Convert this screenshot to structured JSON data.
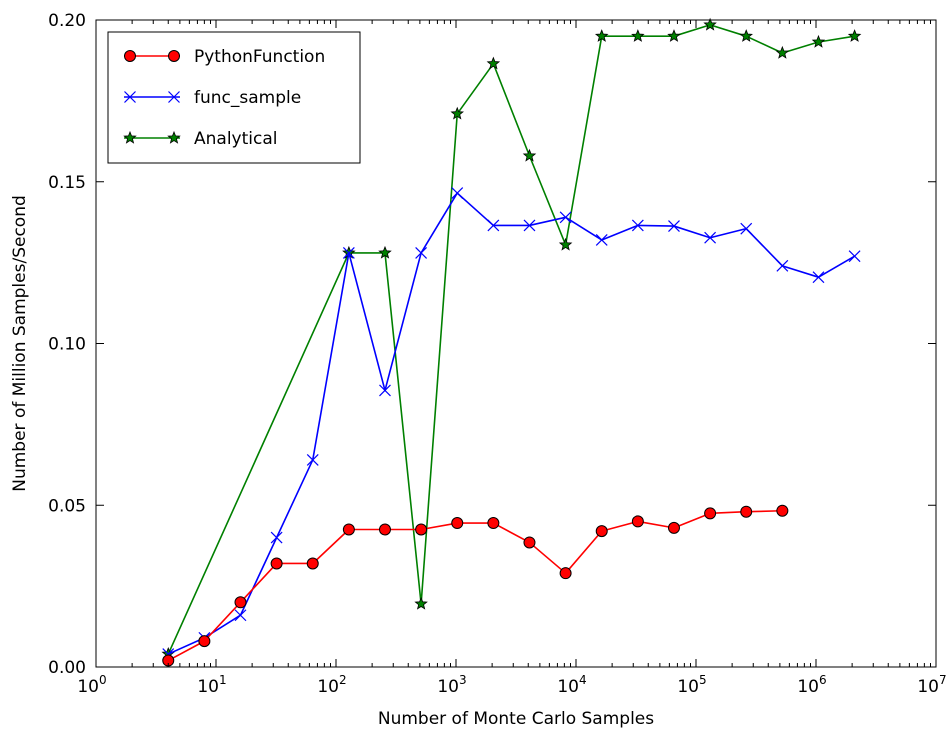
{
  "chart_data": {
    "type": "line",
    "title": "",
    "xlabel": "Number of Monte Carlo Samples",
    "ylabel": "Number of Million Samples/Second",
    "xscale": "log",
    "xlim": [
      1,
      10000000
    ],
    "ylim": [
      0.0,
      0.2
    ],
    "grid": false,
    "legend_position": "top-left",
    "x_ticks": [
      {
        "base": "10",
        "exp": "0",
        "value": 1
      },
      {
        "base": "10",
        "exp": "1",
        "value": 10
      },
      {
        "base": "10",
        "exp": "2",
        "value": 100
      },
      {
        "base": "10",
        "exp": "3",
        "value": 1000
      },
      {
        "base": "10",
        "exp": "4",
        "value": 10000
      },
      {
        "base": "10",
        "exp": "5",
        "value": 100000
      },
      {
        "base": "10",
        "exp": "6",
        "value": 1000000
      },
      {
        "base": "10",
        "exp": "7",
        "value": 10000000
      }
    ],
    "y_ticks": [
      {
        "label": "0.00",
        "value": 0.0
      },
      {
        "label": "0.05",
        "value": 0.05
      },
      {
        "label": "0.10",
        "value": 0.1
      },
      {
        "label": "0.15",
        "value": 0.15
      },
      {
        "label": "0.20",
        "value": 0.2
      }
    ],
    "series": [
      {
        "name": "PythonFunction",
        "color": "#ff0000",
        "line_color": "#ff0000",
        "marker": "circle",
        "x": [
          4,
          8,
          16,
          32,
          64,
          128,
          256,
          512,
          1024,
          2048,
          4096,
          8192,
          16384,
          32768,
          65536,
          131072,
          262144,
          524288
        ],
        "y": [
          0.002,
          0.008,
          0.02,
          0.032,
          0.032,
          0.0425,
          0.0425,
          0.0425,
          0.0445,
          0.0445,
          0.0385,
          0.029,
          0.042,
          0.045,
          0.043,
          0.0475,
          0.048,
          0.0483
        ]
      },
      {
        "name": "func_sample",
        "color": "#0000ff",
        "line_color": "#0000ff",
        "marker": "x",
        "x": [
          4,
          8,
          16,
          32,
          64,
          128,
          256,
          512,
          1024,
          2048,
          4096,
          8192,
          16384,
          32768,
          65536,
          131072,
          262144,
          524288,
          1048576,
          2097152
        ],
        "y": [
          0.004,
          0.009,
          0.016,
          0.04,
          0.064,
          0.128,
          0.0855,
          0.128,
          0.1465,
          0.1365,
          0.1365,
          0.139,
          0.132,
          0.1365,
          0.1363,
          0.1327,
          0.1355,
          0.124,
          0.1205,
          0.127
        ]
      },
      {
        "name": "Analytical",
        "color": "#008000",
        "line_color": "#008000",
        "marker": "star",
        "x": [
          4,
          128,
          256,
          512,
          1024,
          2048,
          4096,
          8192,
          16384,
          32768,
          65536,
          131072,
          262144,
          524288,
          1048576,
          2097152
        ],
        "y": [
          0.004,
          0.128,
          0.128,
          0.0195,
          0.171,
          0.1865,
          0.158,
          0.1305,
          0.195,
          0.195,
          0.195,
          0.1985,
          0.195,
          0.1898,
          0.1932,
          0.195
        ]
      }
    ]
  }
}
